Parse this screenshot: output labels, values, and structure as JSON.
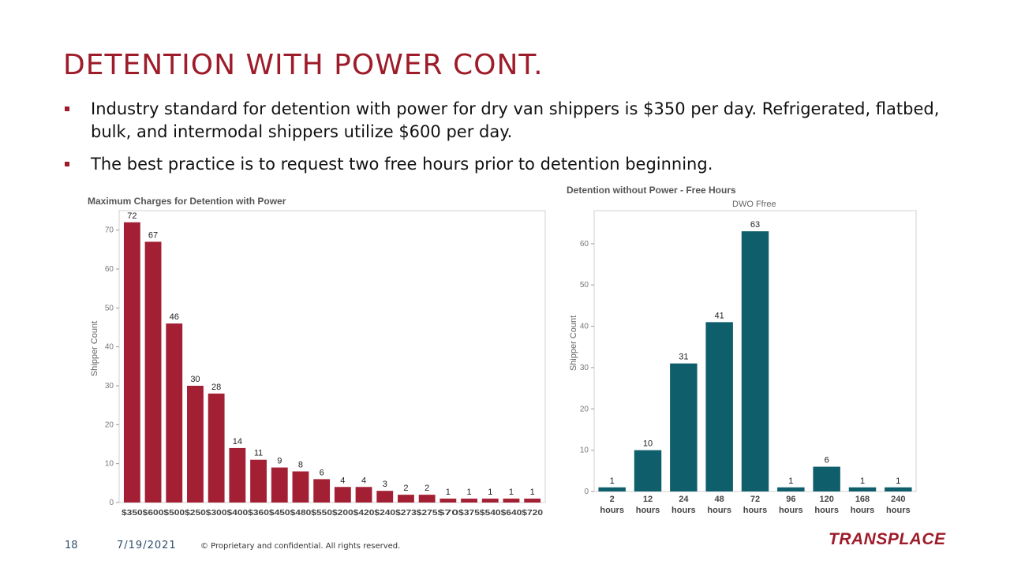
{
  "slide": {
    "title": "DETENTION WITH POWER CONT.",
    "bullets": [
      "Industry standard for detention with power for dry van shippers is $350 per day. Refrigerated, flatbed, bulk, and intermodal shippers utilize $600 per day.",
      "The best practice is to request two free hours prior to detention beginning."
    ]
  },
  "footer": {
    "page_number": "18",
    "date": "7/19/2021",
    "confidential": "© Proprietary and confidential. All rights reserved.",
    "logo_text": "TRANSPLACE"
  },
  "colors": {
    "accent": "#9e1c2a",
    "teal": "#0e5e6b",
    "footer_text": "#2d4e6b"
  },
  "chart_data": [
    {
      "type": "bar",
      "title": "Maximum Charges for Detention with Power",
      "subtitle": "",
      "xlabel": "",
      "ylabel": "Shipper Count",
      "ylim": [
        0,
        75
      ],
      "yticks": [
        0,
        10,
        20,
        30,
        40,
        50,
        60,
        70
      ],
      "grid": false,
      "color": "#a31f34",
      "categories": [
        "$350",
        "$600",
        "$500",
        "$250",
        "$300",
        "$400",
        "$360",
        "$450",
        "$480",
        "$550",
        "$200",
        "$420",
        "$240",
        "$273",
        "$275",
        "$70",
        "$375",
        "$540",
        "$640",
        "$720"
      ],
      "values": [
        72,
        67,
        46,
        30,
        28,
        14,
        11,
        9,
        8,
        6,
        4,
        4,
        3,
        2,
        2,
        1,
        1,
        1,
        1,
        1
      ]
    },
    {
      "type": "bar",
      "title": "Detention without Power - Free Hours",
      "subtitle": "DWO Ffree",
      "xlabel": "",
      "ylabel": "Shipper Count",
      "ylim": [
        0,
        68
      ],
      "yticks": [
        0,
        10,
        20,
        30,
        40,
        50,
        60
      ],
      "grid": false,
      "color": "#0e5e6b",
      "categories": [
        "2 hours",
        "12 hours",
        "24 hours",
        "48 hours",
        "72 hours",
        "96 hours",
        "120 hours",
        "168 hours",
        "240 hours"
      ],
      "values": [
        1,
        10,
        31,
        41,
        63,
        1,
        6,
        1,
        1
      ]
    }
  ]
}
